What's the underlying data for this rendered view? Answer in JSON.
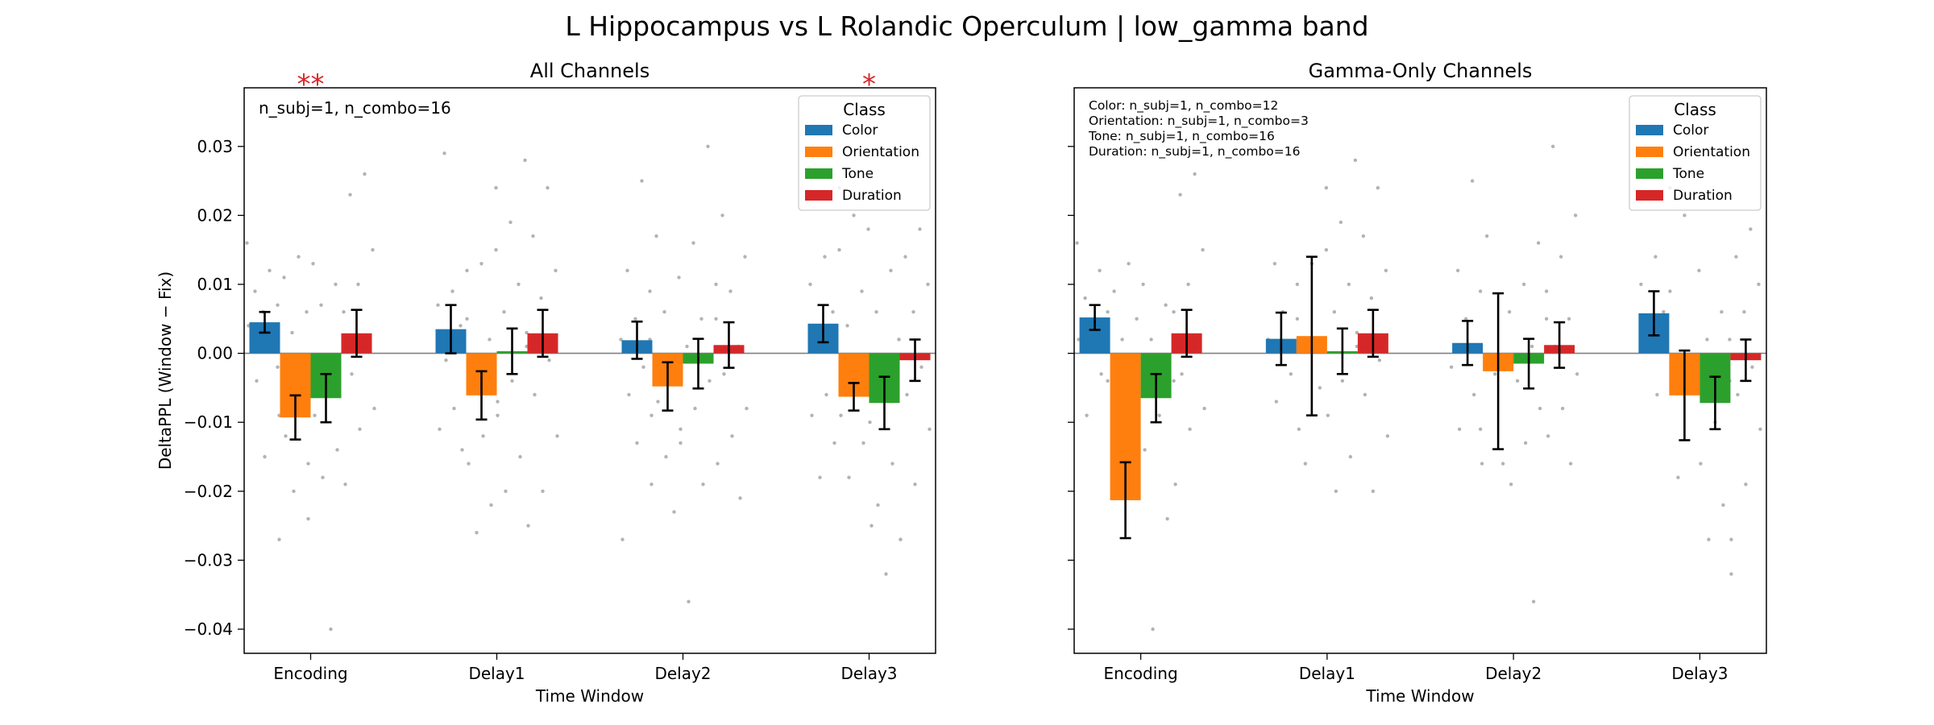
{
  "suptitle": "L Hippocampus vs L Rolandic Operculum  |  low_gamma band",
  "colors": {
    "Color": "#1f77b4",
    "Orientation": "#ff7f0e",
    "Tone": "#2ca02c",
    "Duration": "#d62728",
    "significance": "#d62728",
    "scatter": "#b3b3b3",
    "zero_line": "#808080"
  },
  "chart_data": [
    {
      "type": "bar",
      "title": "All Channels",
      "xlabel": "Time Window",
      "ylabel": "DeltaPPL (Window − Fix)",
      "ylim": [
        -0.0435,
        0.0385
      ],
      "yticks": [
        -0.04,
        -0.03,
        -0.02,
        -0.01,
        0.0,
        0.01,
        0.02,
        0.03
      ],
      "ytick_labels": [
        "−0.04",
        "−0.03",
        "−0.02",
        "−0.01",
        "0.00",
        "0.01",
        "0.02",
        "0.03"
      ],
      "categories": [
        "Encoding",
        "Delay1",
        "Delay2",
        "Delay3"
      ],
      "legend": {
        "title": "Class",
        "placement": "upper right"
      },
      "annotation": "n_subj=1, n_combo=16",
      "significance": [
        {
          "category": "Encoding",
          "label": "**"
        },
        {
          "category": "Delay3",
          "label": "*"
        }
      ],
      "series": [
        {
          "name": "Color",
          "values": [
            0.0045,
            0.0035,
            0.0019,
            0.0043
          ],
          "errors": [
            0.0015,
            0.0035,
            0.0027,
            0.0027
          ]
        },
        {
          "name": "Orientation",
          "values": [
            -0.0093,
            -0.0061,
            -0.0048,
            -0.0063
          ],
          "errors": [
            0.0032,
            0.0035,
            0.0035,
            0.002
          ]
        },
        {
          "name": "Tone",
          "values": [
            -0.0065,
            0.0003,
            -0.0015,
            -0.0072
          ],
          "errors": [
            0.0035,
            0.0033,
            0.0036,
            0.0038
          ]
        },
        {
          "name": "Duration",
          "values": [
            0.0029,
            0.0029,
            0.0012,
            -0.001
          ],
          "errors": [
            0.0034,
            0.0034,
            0.0033,
            0.003
          ]
        }
      ],
      "scatter": {
        "Encoding": [
          [
            0.016,
            0.012,
            0.009,
            0.007,
            0.006,
            0.004,
            0.002,
            -0.004,
            -0.009,
            -0.015
          ],
          [
            0.014,
            0.011,
            0.006,
            0.003,
            -0.002,
            -0.008,
            -0.012,
            -0.016,
            -0.02,
            -0.027
          ],
          [
            0.013,
            0.01,
            0.007,
            0.002,
            -0.004,
            -0.009,
            -0.014,
            -0.018,
            -0.024,
            -0.04
          ],
          [
            0.026,
            0.023,
            0.015,
            0.01,
            0.006,
            0.002,
            -0.003,
            -0.008,
            -0.011,
            -0.019
          ]
        ],
        "Delay1": [
          [
            0.029,
            0.012,
            0.009,
            0.007,
            0.004,
            -0.001,
            -0.005,
            -0.008,
            -0.011,
            -0.014
          ],
          [
            0.024,
            0.013,
            0.005,
            0.002,
            -0.003,
            -0.007,
            -0.012,
            -0.016,
            -0.022,
            -0.026
          ],
          [
            0.019,
            0.015,
            0.01,
            0.006,
            0.001,
            -0.004,
            -0.009,
            -0.015,
            -0.02,
            -0.025
          ],
          [
            0.028,
            0.024,
            0.017,
            0.012,
            0.008,
            0.003,
            -0.001,
            -0.006,
            -0.012,
            -0.02
          ]
        ],
        "Delay2": [
          [
            0.025,
            0.012,
            0.009,
            0.005,
            0.002,
            -0.002,
            -0.006,
            -0.009,
            -0.013,
            -0.027
          ],
          [
            0.017,
            0.011,
            0.006,
            0.002,
            -0.003,
            -0.007,
            -0.011,
            -0.015,
            -0.019,
            -0.023
          ],
          [
            0.03,
            0.016,
            0.01,
            0.005,
            0.001,
            -0.004,
            -0.008,
            -0.013,
            -0.019,
            -0.036
          ],
          [
            0.02,
            0.014,
            0.009,
            0.005,
            0.001,
            -0.003,
            -0.008,
            -0.012,
            -0.016,
            -0.021
          ]
        ],
        "Delay3": [
          [
            0.024,
            0.014,
            0.01,
            0.006,
            0.002,
            -0.002,
            -0.006,
            -0.009,
            -0.013,
            -0.018
          ],
          [
            0.02,
            0.015,
            0.009,
            0.004,
            -0.001,
            -0.005,
            -0.009,
            -0.013,
            -0.018,
            -0.025
          ],
          [
            0.018,
            0.012,
            0.006,
            0.002,
            -0.004,
            -0.01,
            -0.016,
            -0.022,
            -0.027,
            -0.032
          ],
          [
            0.018,
            0.014,
            0.01,
            0.006,
            0.002,
            -0.002,
            -0.006,
            -0.011,
            -0.019,
            -0.027
          ]
        ]
      }
    },
    {
      "type": "bar",
      "title": "Gamma-Only Channels",
      "xlabel": "Time Window",
      "ylabel": "",
      "ylim": [
        -0.0435,
        0.0385
      ],
      "yticks": [
        -0.04,
        -0.03,
        -0.02,
        -0.01,
        0.0,
        0.01,
        0.02,
        0.03
      ],
      "ytick_labels": [],
      "categories": [
        "Encoding",
        "Delay1",
        "Delay2",
        "Delay3"
      ],
      "legend": {
        "title": "Class",
        "placement": "upper right"
      },
      "annotation_lines": [
        "Color: n_subj=1, n_combo=12",
        "Orientation: n_subj=1, n_combo=3",
        "Tone: n_subj=1, n_combo=16",
        "Duration: n_subj=1, n_combo=16"
      ],
      "significance": [],
      "series": [
        {
          "name": "Color",
          "values": [
            0.0052,
            0.0021,
            0.0015,
            0.0058
          ],
          "errors": [
            0.0018,
            0.0038,
            0.0032,
            0.0032
          ]
        },
        {
          "name": "Orientation",
          "values": [
            -0.0213,
            0.0025,
            -0.0026,
            -0.0061
          ],
          "errors": [
            0.0055,
            0.0115,
            0.0113,
            0.0065
          ]
        },
        {
          "name": "Tone",
          "values": [
            -0.0065,
            0.0003,
            -0.0015,
            -0.0072
          ],
          "errors": [
            0.0035,
            0.0033,
            0.0036,
            0.0038
          ]
        },
        {
          "name": "Duration",
          "values": [
            0.0029,
            0.0029,
            0.0012,
            -0.001
          ],
          "errors": [
            0.0034,
            0.0034,
            0.0033,
            0.003
          ]
        }
      ],
      "scatter": {
        "Encoding": [
          [
            0.016,
            0.012,
            0.008,
            0.006,
            0.004,
            0.002,
            -0.003,
            -0.009
          ],
          [
            0.013,
            0.009,
            0.005,
            0.002,
            -0.004,
            -0.009,
            -0.017
          ],
          [
            0.01,
            0.007,
            0.002,
            -0.004,
            -0.009,
            -0.014,
            -0.024,
            -0.04
          ],
          [
            0.026,
            0.023,
            0.015,
            0.01,
            0.006,
            0.002,
            -0.003,
            -0.008,
            -0.011,
            -0.019
          ]
        ],
        "Delay1": [
          [
            0.013,
            0.01,
            0.006,
            0.002,
            -0.003,
            -0.007,
            -0.011
          ],
          [
            0.024,
            0.013,
            0.005,
            -0.005,
            -0.016
          ],
          [
            0.019,
            0.015,
            0.01,
            0.006,
            0.001,
            -0.004,
            -0.009,
            -0.015,
            -0.02
          ],
          [
            0.028,
            0.024,
            0.017,
            0.012,
            0.008,
            0.003,
            -0.001,
            -0.006,
            -0.012,
            -0.02
          ]
        ],
        "Delay2": [
          [
            0.025,
            0.012,
            0.009,
            0.005,
            -0.002,
            -0.006,
            -0.011,
            -0.016
          ],
          [
            0.017,
            0.006,
            -0.003,
            -0.011,
            -0.016
          ],
          [
            0.016,
            0.01,
            0.005,
            0.001,
            -0.004,
            -0.008,
            -0.013,
            -0.019,
            -0.036
          ],
          [
            0.03,
            0.02,
            0.014,
            0.009,
            0.005,
            0.001,
            -0.003,
            -0.008,
            -0.012,
            -0.016
          ]
        ],
        "Delay3": [
          [
            0.024,
            0.014,
            0.01,
            0.006,
            0.002,
            -0.002,
            -0.006
          ],
          [
            0.02,
            0.009,
            -0.005,
            -0.018
          ],
          [
            0.012,
            0.006,
            0.002,
            -0.004,
            -0.01,
            -0.016,
            -0.022,
            -0.027,
            -0.032
          ],
          [
            0.018,
            0.014,
            0.01,
            0.006,
            0.002,
            -0.002,
            -0.006,
            -0.011,
            -0.019,
            -0.027
          ]
        ]
      }
    }
  ]
}
